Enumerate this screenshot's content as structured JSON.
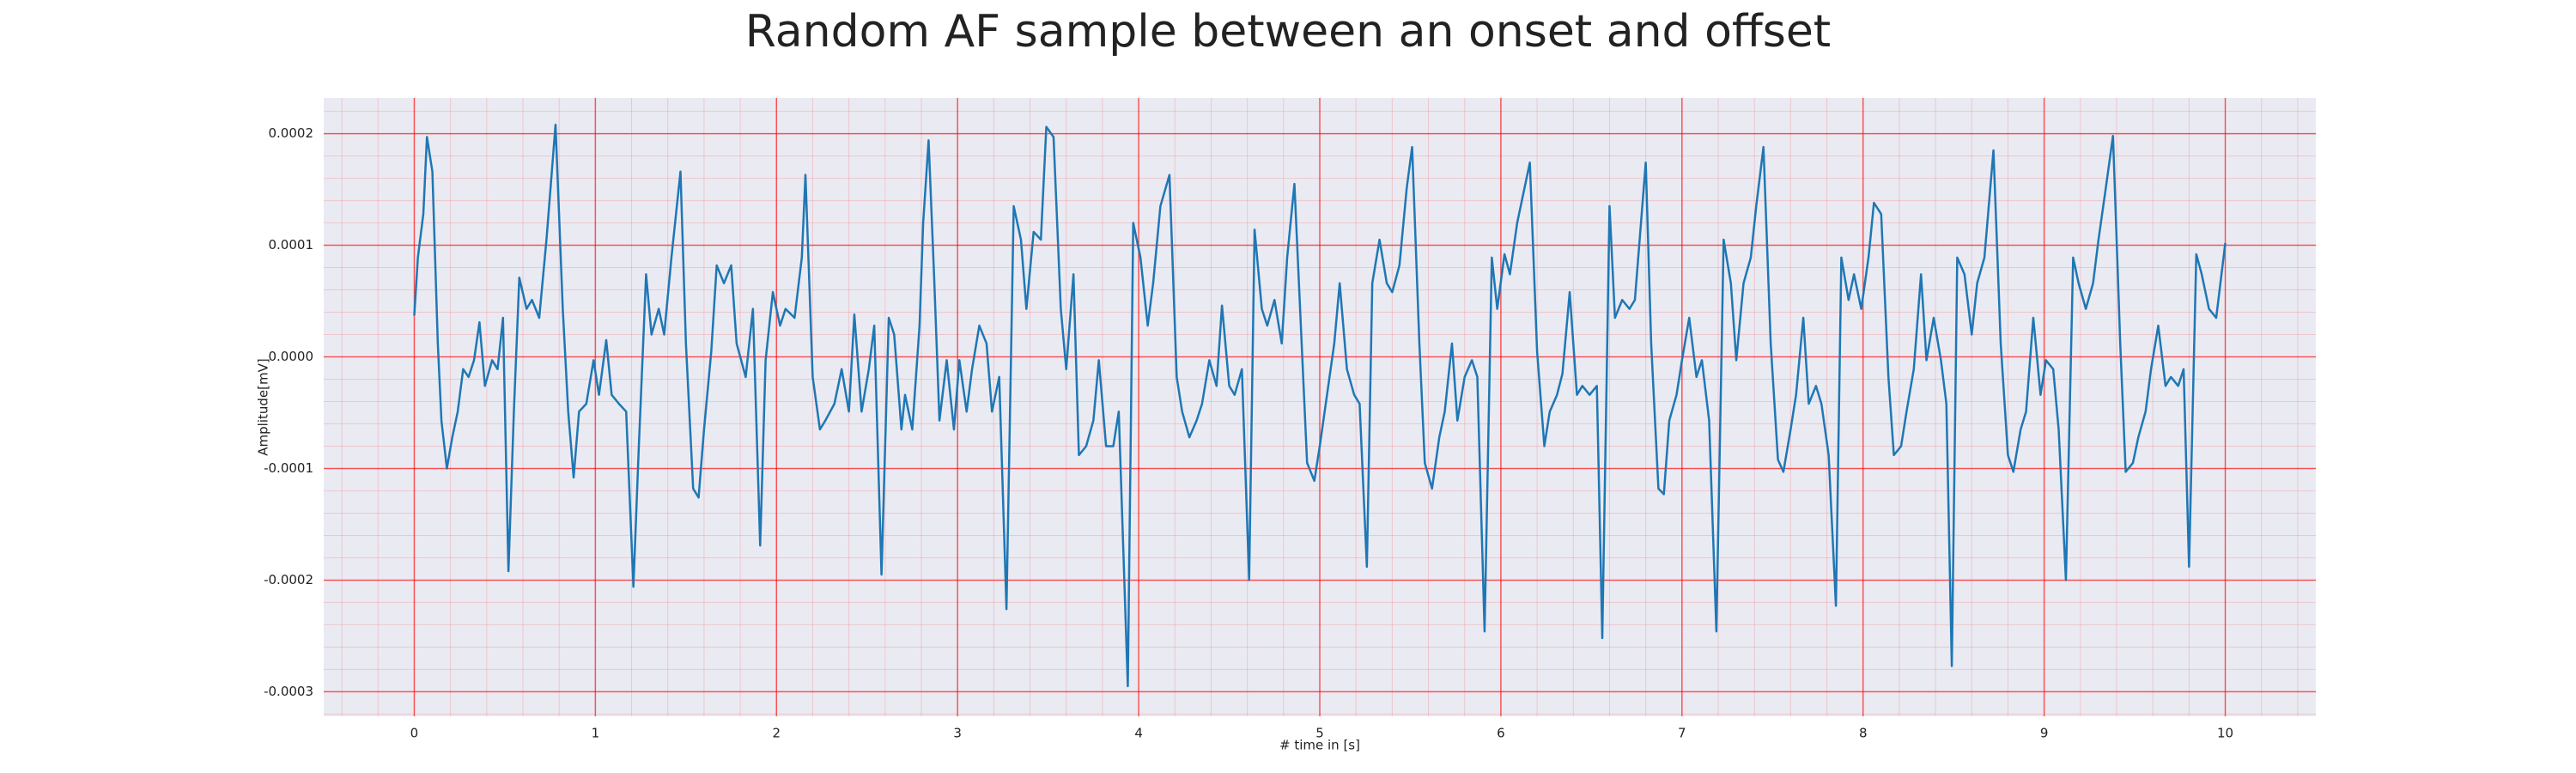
{
  "chart_data": {
    "type": "line",
    "title": "Random AF sample between an onset and offset",
    "xlabel": "# time in [s]",
    "ylabel": "Amplitude[mV]",
    "color": "#1f77b4",
    "grid": true,
    "minor_grid": true,
    "grid_color": "#ff0000",
    "background": "#eaeaf2",
    "xlim": [
      -0.5,
      10.5
    ],
    "xticks": [
      0,
      1,
      2,
      3,
      4,
      5,
      6,
      7,
      8,
      9,
      10
    ],
    "ylim": [
      -0.000322,
      0.000232
    ],
    "yticks": [
      -0.0003,
      -0.0002,
      -0.0001,
      {
        "value": 0,
        "label": "0.0000"
      },
      0.0001,
      0.0002
    ],
    "x": [
      0,
      0.02,
      0.05,
      0.07,
      0.1,
      0.13,
      0.15,
      0.18,
      0.21,
      0.24,
      0.27,
      0.3,
      0.33,
      0.36,
      0.39,
      0.43,
      0.46,
      0.49,
      0.52,
      0.55,
      0.58,
      0.62,
      0.65,
      0.69,
      0.73,
      0.78,
      0.82,
      0.85,
      0.88,
      0.91,
      0.95,
      0.99,
      1.02,
      1.06,
      1.09,
      1.13,
      1.17,
      1.21,
      1.24,
      1.28,
      1.31,
      1.35,
      1.38,
      1.42,
      1.47,
      1.5,
      1.54,
      1.57,
      1.6,
      1.64,
      1.67,
      1.71,
      1.75,
      1.78,
      1.83,
      1.87,
      1.91,
      1.94,
      1.98,
      2.02,
      2.05,
      2.1,
      2.14,
      2.16,
      2.2,
      2.24,
      2.27,
      2.32,
      2.36,
      2.4,
      2.43,
      2.47,
      2.51,
      2.54,
      2.58,
      2.62,
      2.65,
      2.69,
      2.71,
      2.75,
      2.79,
      2.81,
      2.84,
      2.87,
      2.9,
      2.94,
      2.98,
      3.01,
      3.05,
      3.08,
      3.12,
      3.16,
      3.19,
      3.23,
      3.27,
      3.31,
      3.35,
      3.38,
      3.42,
      3.46,
      3.49,
      3.53,
      3.57,
      3.6,
      3.64,
      3.67,
      3.71,
      3.75,
      3.78,
      3.82,
      3.86,
      3.89,
      3.94,
      3.97,
      4.01,
      4.05,
      4.08,
      4.12,
      4.17,
      4.21,
      4.24,
      4.28,
      4.32,
      4.35,
      4.39,
      4.43,
      4.46,
      4.5,
      4.53,
      4.57,
      4.61,
      4.64,
      4.68,
      4.71,
      4.75,
      4.79,
      4.82,
      4.86,
      4.9,
      4.93,
      4.97,
      5.0,
      5.04,
      5.08,
      5.11,
      5.15,
      5.19,
      5.22,
      5.26,
      5.29,
      5.33,
      5.37,
      5.4,
      5.44,
      5.48,
      5.51,
      5.55,
      5.58,
      5.62,
      5.66,
      5.69,
      5.73,
      5.76,
      5.8,
      5.84,
      5.87,
      5.91,
      5.95,
      5.98,
      6.02,
      6.05,
      6.09,
      6.16,
      6.2,
      6.24,
      6.27,
      6.31,
      6.34,
      6.38,
      6.42,
      6.45,
      6.49,
      6.53,
      6.56,
      6.6,
      6.63,
      6.67,
      6.71,
      6.74,
      6.8,
      6.83,
      6.87,
      6.9,
      6.93,
      6.97,
      7.0,
      7.04,
      7.08,
      7.11,
      7.15,
      7.19,
      7.23,
      7.27,
      7.3,
      7.34,
      7.38,
      7.41,
      7.45,
      7.49,
      7.53,
      7.56,
      7.6,
      7.63,
      7.67,
      7.7,
      7.74,
      7.77,
      7.81,
      7.85,
      7.88,
      7.92,
      7.95,
      7.99,
      8.03,
      8.06,
      8.1,
      8.14,
      8.17,
      8.21,
      8.24,
      8.28,
      8.32,
      8.35,
      8.39,
      8.43,
      8.46,
      8.49,
      8.52,
      8.56,
      8.6,
      8.63,
      8.67,
      8.72,
      8.76,
      8.8,
      8.83,
      8.87,
      8.9,
      8.94,
      8.98,
      9.01,
      9.05,
      9.08,
      9.12,
      9.16,
      9.19,
      9.23,
      9.27,
      9.3,
      9.34,
      9.38,
      9.42,
      9.45,
      9.49,
      9.52,
      9.56,
      9.59,
      9.63,
      9.67,
      9.7,
      9.74,
      9.77,
      9.8,
      9.84,
      9.87,
      9.91,
      9.95,
      10.0
    ],
    "values": [
      3.7e-05,
      8.9e-05,
      0.000128,
      0.000197,
      0.000166,
      1.2e-05,
      -5.7e-05,
      -0.0001,
      -7.2e-05,
      -4.9e-05,
      -1.1e-05,
      -1.8e-05,
      -3e-06,
      3.1e-05,
      -2.6e-05,
      -3e-06,
      -1.1e-05,
      3.5e-05,
      -0.000192,
      -4.9e-05,
      7.1e-05,
      4.3e-05,
      5.1e-05,
      3.5e-05,
      0.000105,
      0.000208,
      4.3e-05,
      -4.9e-05,
      -0.000108,
      -4.9e-05,
      -4.2e-05,
      -3e-06,
      -3.4e-05,
      1.5e-05,
      -3.4e-05,
      -4.2e-05,
      -4.9e-05,
      -0.000206,
      -8e-05,
      7.4e-05,
      2e-05,
      4.3e-05,
      2e-05,
      8.9e-05,
      0.000166,
      1.2e-05,
      -0.000118,
      -0.000126,
      -6.5e-05,
      5e-06,
      8.2e-05,
      6.6e-05,
      8.2e-05,
      1.2e-05,
      -1.8e-05,
      4.3e-05,
      -0.000169,
      -3e-06,
      5.8e-05,
      2.8e-05,
      4.3e-05,
      3.5e-05,
      8.9e-05,
      0.000163,
      -1.8e-05,
      -6.5e-05,
      -5.7e-05,
      -4.2e-05,
      -1.1e-05,
      -4.9e-05,
      3.8e-05,
      -4.9e-05,
      -1.1e-05,
      2.8e-05,
      -0.000195,
      3.5e-05,
      2e-05,
      -6.5e-05,
      -3.4e-05,
      -6.5e-05,
      2.8e-05,
      0.00012,
      0.000194,
      7.4e-05,
      -5.7e-05,
      -3e-06,
      -6.5e-05,
      -3e-06,
      -4.9e-05,
      -1.1e-05,
      2.8e-05,
      1.2e-05,
      -4.9e-05,
      -1.8e-05,
      -0.000226,
      0.000135,
      0.000105,
      4.3e-05,
      0.000112,
      0.000105,
      0.000206,
      0.000197,
      4.3e-05,
      -1.1e-05,
      7.4e-05,
      -8.8e-05,
      -8e-05,
      -5.7e-05,
      -3e-06,
      -8e-05,
      -8e-05,
      -4.9e-05,
      -0.000295,
      0.00012,
      8.9e-05,
      2.8e-05,
      6.6e-05,
      0.000135,
      0.000163,
      -1.8e-05,
      -4.9e-05,
      -7.2e-05,
      -5.7e-05,
      -4.2e-05,
      -3e-06,
      -2.6e-05,
      4.6e-05,
      -2.6e-05,
      -3.4e-05,
      -1.1e-05,
      -0.0002,
      0.000114,
      4.3e-05,
      2.8e-05,
      5.1e-05,
      1.2e-05,
      8.9e-05,
      0.000155,
      1.2e-05,
      -9.5e-05,
      -0.000111,
      -8e-05,
      -3.4e-05,
      1.2e-05,
      6.6e-05,
      -1.1e-05,
      -3.4e-05,
      -4.2e-05,
      -0.000188,
      6.6e-05,
      0.000105,
      6.6e-05,
      5.8e-05,
      8.2e-05,
      0.000151,
      0.000188,
      1.2e-05,
      -9.5e-05,
      -0.000118,
      -7.2e-05,
      -4.9e-05,
      1.2e-05,
      -5.7e-05,
      -1.8e-05,
      -3e-06,
      -1.8e-05,
      -0.000246,
      8.9e-05,
      4.3e-05,
      9.2e-05,
      7.4e-05,
      0.00012,
      0.000174,
      5e-06,
      -8e-05,
      -4.9e-05,
      -3.4e-05,
      -1.5e-05,
      5.8e-05,
      -3.4e-05,
      -2.6e-05,
      -3.4e-05,
      -2.6e-05,
      -0.000252,
      0.000135,
      3.5e-05,
      5.1e-05,
      4.3e-05,
      5.1e-05,
      0.000174,
      1.2e-05,
      -0.000118,
      -0.000123,
      -5.7e-05,
      -3.4e-05,
      -3e-06,
      3.5e-05,
      -1.8e-05,
      -3e-06,
      -5.7e-05,
      -0.000246,
      0.000105,
      6.6e-05,
      -3e-06,
      6.6e-05,
      8.9e-05,
      0.000135,
      0.000188,
      1.2e-05,
      -9.2e-05,
      -0.000103,
      -6.5e-05,
      -3.4e-05,
      3.5e-05,
      -4.2e-05,
      -2.6e-05,
      -4.2e-05,
      -8.8e-05,
      -0.000223,
      8.9e-05,
      5.1e-05,
      7.4e-05,
      4.3e-05,
      8.9e-05,
      0.000138,
      0.000128,
      -1.8e-05,
      -8.8e-05,
      -8e-05,
      -4.9e-05,
      -1.1e-05,
      7.4e-05,
      -3e-06,
      3.5e-05,
      -3e-06,
      -4.2e-05,
      -0.000277,
      8.9e-05,
      7.4e-05,
      2e-05,
      6.6e-05,
      8.9e-05,
      0.000185,
      1.2e-05,
      -8.8e-05,
      -0.000103,
      -6.5e-05,
      -4.9e-05,
      3.5e-05,
      -3.4e-05,
      -3e-06,
      -1.1e-05,
      -6.5e-05,
      -0.0002,
      8.9e-05,
      6.6e-05,
      4.3e-05,
      6.6e-05,
      0.000105,
      0.000151,
      0.000198,
      1.2e-05,
      -0.000103,
      -9.5e-05,
      -7.2e-05,
      -4.9e-05,
      -1.1e-05,
      2.8e-05,
      -2.6e-05,
      -1.8e-05,
      -2.6e-05,
      -1.1e-05,
      -0.000188,
      9.2e-05,
      7.4e-05,
      4.3e-05,
      3.5e-05,
      0.000102
    ]
  }
}
